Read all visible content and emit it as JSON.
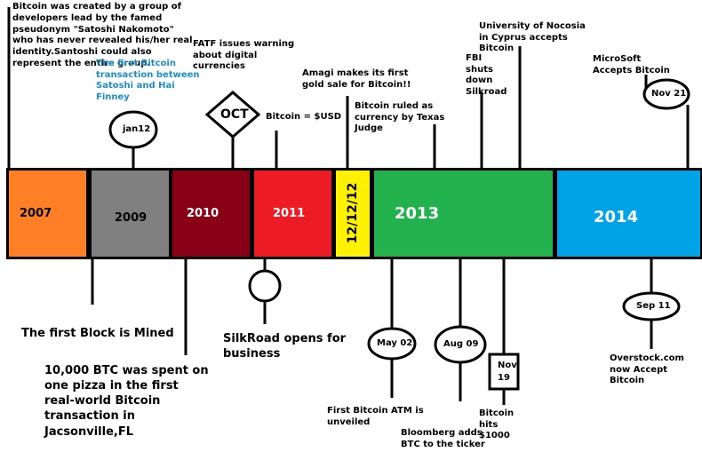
{
  "timeline": {
    "segments": [
      {
        "label": "2007",
        "color": "#ff7f27",
        "text_color": "#000000"
      },
      {
        "label": "2009",
        "color": "#808080",
        "text_color": "#000000"
      },
      {
        "label": "2010",
        "color": "#880015",
        "text_color": "#ffffff"
      },
      {
        "label": "2011",
        "color": "#ed1c24",
        "text_color": "#ffffff"
      },
      {
        "label": "12/12/12",
        "color": "#fff200",
        "text_color": "#000000"
      },
      {
        "label": "2013",
        "color": "#22b14c",
        "text_color": "#ffffff"
      },
      {
        "label": "2014",
        "color": "#00a2e8",
        "text_color": "#ffffff"
      }
    ],
    "markers": {
      "jan12": "jan12",
      "oct": "OCT",
      "may02": "May 02",
      "aug09": "Aug 09",
      "nov19": "Nov 19",
      "sep11": "Sep 11",
      "nov21": "Nov 21"
    },
    "events": {
      "satoshi": "Bitcoin was created by a group of developers lead by the famed pseudonym \"Satoshi Nakomoto\" who has never revealed his/her real identity.Santoshi could also represent the entire group.",
      "first_tx": "The first Bitcoin transaction between Satoshi and Hai Finney",
      "fatf": "FATF issues warning about digital currencies",
      "usd": "Bitcoin = $USD",
      "amagi": "Amagi makes its first gold sale for Bitcoin!!",
      "texas": "Bitcoin ruled as currency by Texas Judge",
      "fbi": "FBI shuts down Silkroad",
      "nicosia": "University of Nocosia in Cyprus accepts Bitcoin",
      "microsoft": "MicroSoft Accepts Bitcoin",
      "first_block": "The first Block is Mined",
      "pizza": "10,000 BTC was spent on one pizza in the first real-world Bitcoin transaction in Jacsonville,FL",
      "silkroad": "SilkRoad opens for business",
      "atm": "First Bitcoin ATM is unveiled",
      "bloomberg": "Bloomberg adds BTC to the ticker",
      "btc1000": "Bitcoin hits $1000",
      "overstock": "Overstock.com now Accept Bitcoin"
    }
  }
}
